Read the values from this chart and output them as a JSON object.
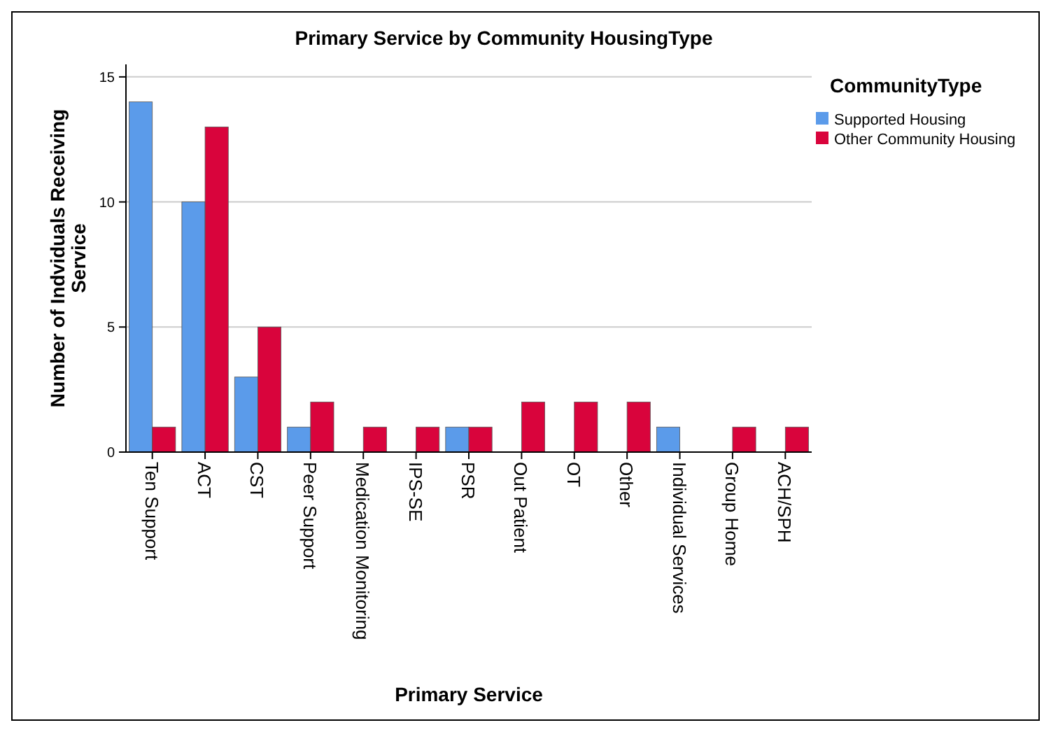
{
  "chart_data": {
    "type": "bar",
    "title": "Primary Service by Community HousingType",
    "xlabel": "Primary Service",
    "ylabel": "Number of Indviduals Receiving Service",
    "legend_title": "CommunityType",
    "legend": "right",
    "categories": [
      "Ten Support",
      "ACT",
      "CST",
      "Peer Support",
      "Medication Monitoring",
      "IPS-SE",
      "PSR",
      "Out Patient",
      "OT",
      "Other",
      "Individual Services",
      "Group Home",
      "ACH/SPH"
    ],
    "series": [
      {
        "name": "Supported Housing",
        "color": "#5b9bea",
        "values": [
          14,
          10,
          3,
          1,
          null,
          null,
          1,
          null,
          null,
          null,
          1,
          null,
          null
        ]
      },
      {
        "name": "Other Community Housing",
        "color": "#d9043c",
        "values": [
          1,
          13,
          5,
          2,
          1,
          1,
          1,
          2,
          2,
          2,
          null,
          1,
          1
        ]
      }
    ],
    "ylim": [
      0,
      15.5
    ],
    "yticks": [
      0,
      5,
      10,
      15
    ],
    "grid": "y"
  }
}
